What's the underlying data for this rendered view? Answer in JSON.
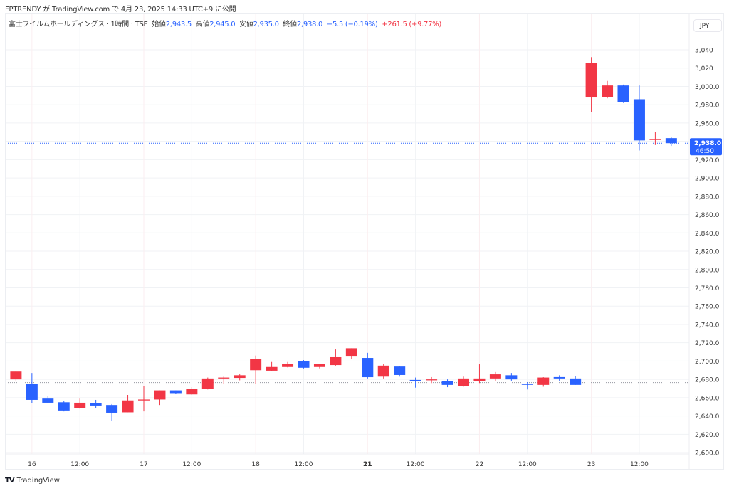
{
  "publish_line": "FPTRENDY が TradingView.com で 4月 23, 2025 14:33 UTC+9 に公開",
  "legend": {
    "symbol": "富士フイルムホールディングス · 1時間 · TSE",
    "open_label": "始値",
    "open": "2,943.5",
    "high_label": "高値",
    "high": "2,945.0",
    "low_label": "安値",
    "low": "2,935.0",
    "close_label": "終値",
    "close": "2,938.0",
    "change": "−5.5 (−0.19%)",
    "change_total": "+261.5 (+9.77%)"
  },
  "currency": "JPY",
  "brand": "TradingView",
  "last_price_label": {
    "price": "2,938.0",
    "countdown": "46:50"
  },
  "colors": {
    "up": "#f23645",
    "down": "#2962ff",
    "grid": "#f0f2f5",
    "day_grid": "#fbeef0"
  },
  "chart_data": {
    "type": "candlestick",
    "ylim": [
      2590,
      3050
    ],
    "y_ticks": [
      {
        "v": 3040,
        "t": "3,040"
      },
      {
        "v": 3020,
        "t": "3,020"
      },
      {
        "v": 3000,
        "t": "3,000.0"
      },
      {
        "v": 2980,
        "t": "2,980.0"
      },
      {
        "v": 2960,
        "t": "2,960.0"
      },
      {
        "v": 2920,
        "t": "2,920.0"
      },
      {
        "v": 2900,
        "t": "2,900.0"
      },
      {
        "v": 2880,
        "t": "2,880.0"
      },
      {
        "v": 2860,
        "t": "2,860.0"
      },
      {
        "v": 2840,
        "t": "2,840.0"
      },
      {
        "v": 2820,
        "t": "2,820.0"
      },
      {
        "v": 2800,
        "t": "2,800.0"
      },
      {
        "v": 2780,
        "t": "2,780.0"
      },
      {
        "v": 2760,
        "t": "2,760.0"
      },
      {
        "v": 2740,
        "t": "2,740.0"
      },
      {
        "v": 2720,
        "t": "2,720.0"
      },
      {
        "v": 2700,
        "t": "2,700.0"
      },
      {
        "v": 2680,
        "t": "2,680.0"
      },
      {
        "v": 2660,
        "t": "2,660.0"
      },
      {
        "v": 2640,
        "t": "2,640.0"
      },
      {
        "v": 2620,
        "t": "2,620.0"
      },
      {
        "v": 2600,
        "t": "2,600.0"
      }
    ],
    "x_ticks": [
      {
        "i": 1,
        "t": "16",
        "day": true
      },
      {
        "i": 4,
        "t": "12:00"
      },
      {
        "i": 8,
        "t": "17",
        "day": true
      },
      {
        "i": 11,
        "t": "12:00"
      },
      {
        "i": 15,
        "t": "18",
        "day": true
      },
      {
        "i": 18,
        "t": "12:00"
      },
      {
        "i": 22,
        "t": "21",
        "day": true,
        "bold": true
      },
      {
        "i": 25,
        "t": "12:00"
      },
      {
        "i": 29,
        "t": "22",
        "day": true
      },
      {
        "i": 32,
        "t": "12:00"
      },
      {
        "i": 36,
        "t": "23",
        "day": true
      },
      {
        "i": 39,
        "t": "12:00"
      }
    ],
    "reference_price": 2676.5,
    "last_price": 2938.0,
    "ohlc": [
      [
        2680,
        2689,
        2678.5,
        2688.5
      ],
      [
        2675.4,
        2687,
        2653.7,
        2657.6
      ],
      [
        2659,
        2662,
        2653.7,
        2654.5
      ],
      [
        2655,
        2656,
        2645,
        2646
      ],
      [
        2648.6,
        2659,
        2648,
        2654.5
      ],
      [
        2653.7,
        2657.6,
        2649,
        2651.4
      ],
      [
        2652,
        2653,
        2635,
        2643.6
      ],
      [
        2644,
        2663,
        2644,
        2657
      ],
      [
        2657,
        2673,
        2645,
        2658
      ],
      [
        2658,
        2668,
        2652,
        2668
      ],
      [
        2668,
        2668,
        2664,
        2665
      ],
      [
        2663.6,
        2671.5,
        2663,
        2670
      ],
      [
        2670,
        2682,
        2669,
        2681
      ],
      [
        2681,
        2683,
        2675,
        2682
      ],
      [
        2681.6,
        2685.5,
        2679,
        2684.5
      ],
      [
        2690,
        2706,
        2675,
        2702
      ],
      [
        2689.5,
        2699,
        2689,
        2693.5
      ],
      [
        2693.5,
        2699,
        2693,
        2697
      ],
      [
        2699.6,
        2701,
        2692,
        2692.7
      ],
      [
        2693.5,
        2697,
        2692,
        2696.7
      ],
      [
        2695.6,
        2712.7,
        2695,
        2705
      ],
      [
        2705.7,
        2714,
        2702.6,
        2714
      ],
      [
        2703.4,
        2709,
        2681,
        2682.4
      ],
      [
        2683,
        2697,
        2681,
        2695
      ],
      [
        2694,
        2694.5,
        2683,
        2684.8
      ],
      [
        2679.4,
        2682,
        2671,
        2679
      ],
      [
        2679,
        2682.5,
        2676,
        2680
      ],
      [
        2678.5,
        2680,
        2671.5,
        2674
      ],
      [
        2673,
        2683,
        2672,
        2681
      ],
      [
        2678.5,
        2696.4,
        2676,
        2681
      ],
      [
        2681,
        2688,
        2678,
        2685.5
      ],
      [
        2684.5,
        2687,
        2678.6,
        2680
      ],
      [
        2675,
        2677,
        2669,
        2674.6
      ],
      [
        2674,
        2682.4,
        2672,
        2682
      ],
      [
        2682.5,
        2684.5,
        2678.6,
        2681
      ],
      [
        2681,
        2684,
        2674,
        2674
      ],
      [
        2987.9,
        3032,
        2971.6,
        3026
      ],
      [
        2988,
        3006,
        2987,
        3001
      ],
      [
        3001,
        3002,
        2982,
        2983
      ],
      [
        2986,
        3001,
        2930,
        2941
      ],
      [
        2941.5,
        2950,
        2936,
        2942.5
      ],
      [
        2943.5,
        2945,
        2935,
        2938
      ]
    ]
  }
}
